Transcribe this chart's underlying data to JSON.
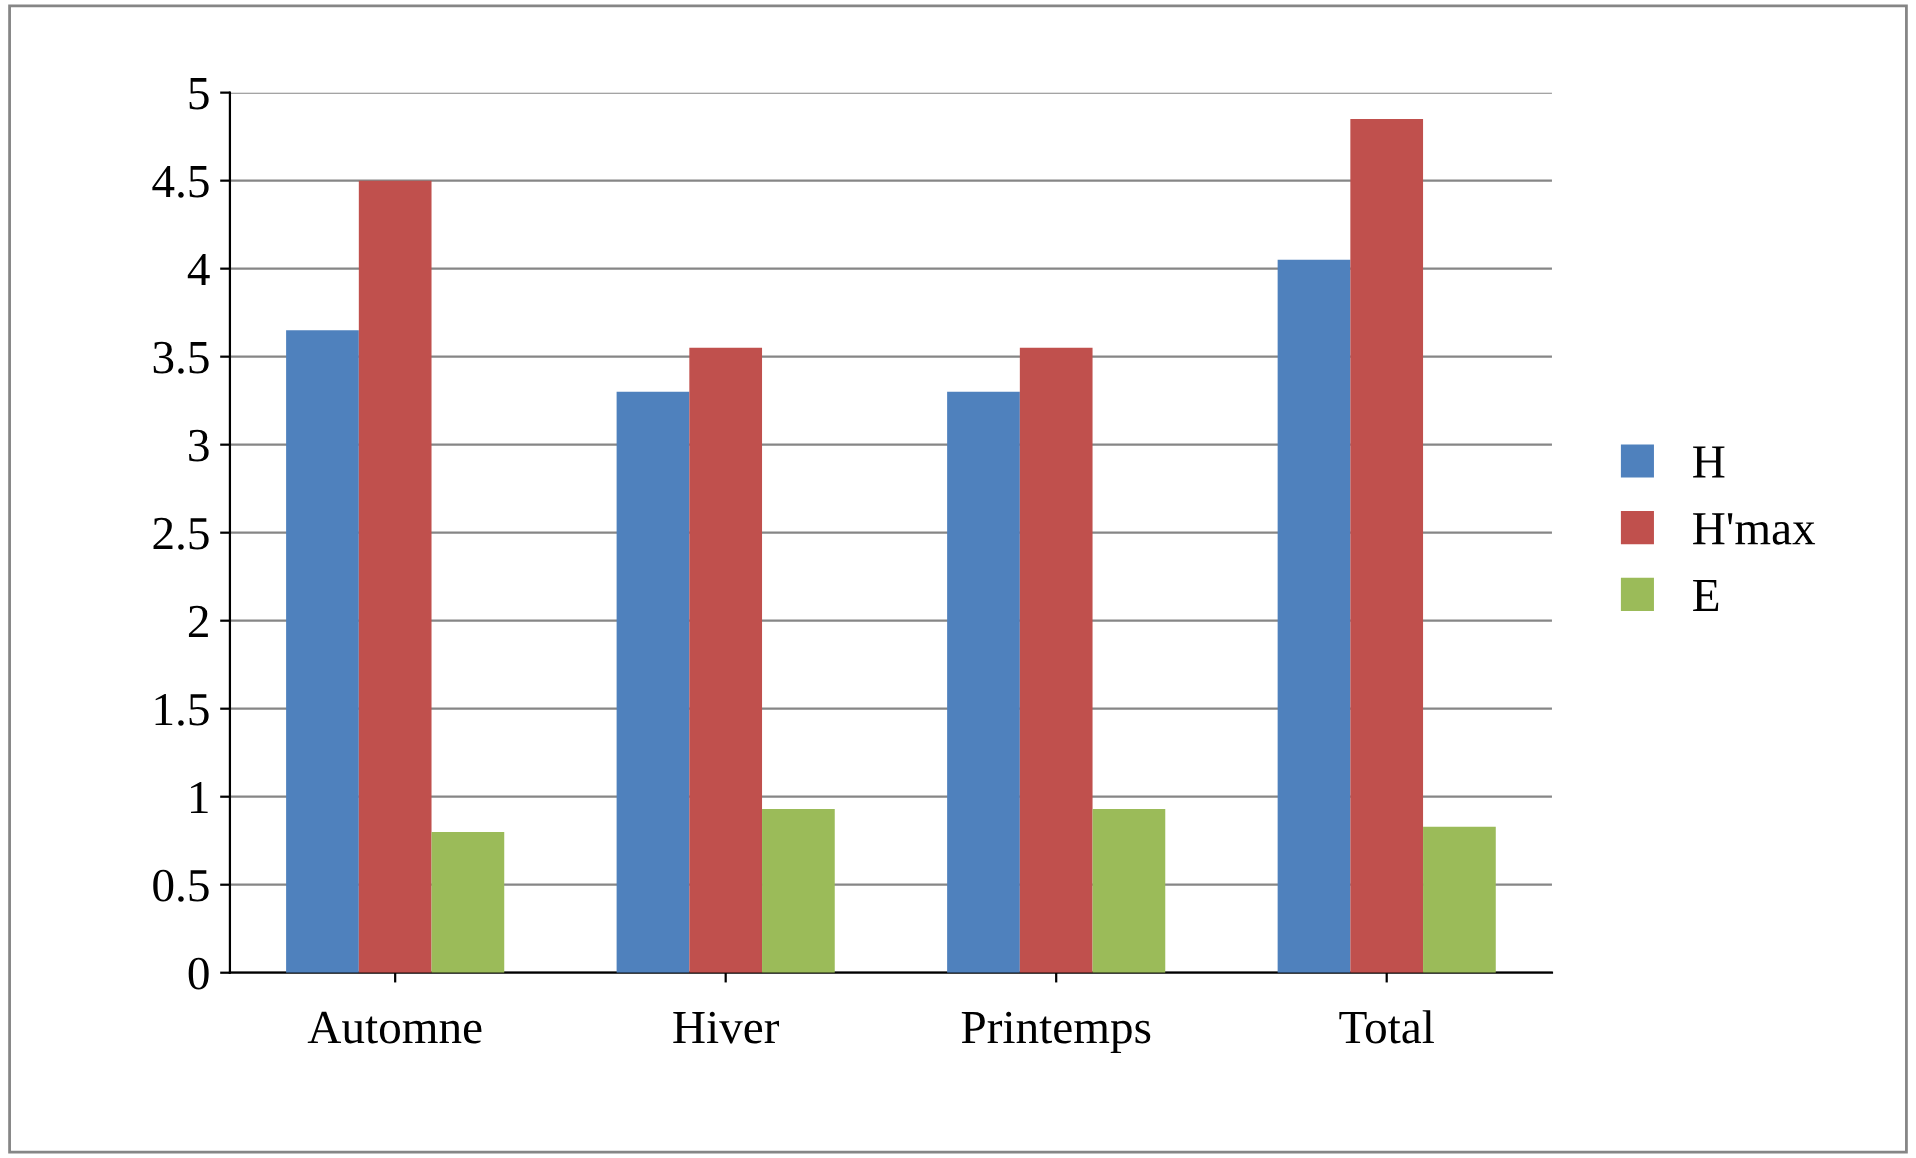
{
  "chart_data": {
    "type": "bar",
    "categories": [
      "Automne",
      "Hiver",
      "Printemps",
      "Total"
    ],
    "series": [
      {
        "name": "H",
        "color": "#4f81bd",
        "values": [
          3.65,
          3.3,
          3.3,
          4.05
        ]
      },
      {
        "name": "H'max",
        "color": "#c0504d",
        "values": [
          4.5,
          3.55,
          3.55,
          4.85
        ]
      },
      {
        "name": "E",
        "color": "#9bbb59",
        "values": [
          0.8,
          0.93,
          0.93,
          0.83
        ]
      }
    ],
    "ylim": [
      0,
      5
    ],
    "yticks": [
      0,
      0.5,
      1,
      1.5,
      2,
      2.5,
      3,
      3.5,
      4,
      4.5,
      5
    ],
    "grid": "y",
    "legend": "right"
  }
}
